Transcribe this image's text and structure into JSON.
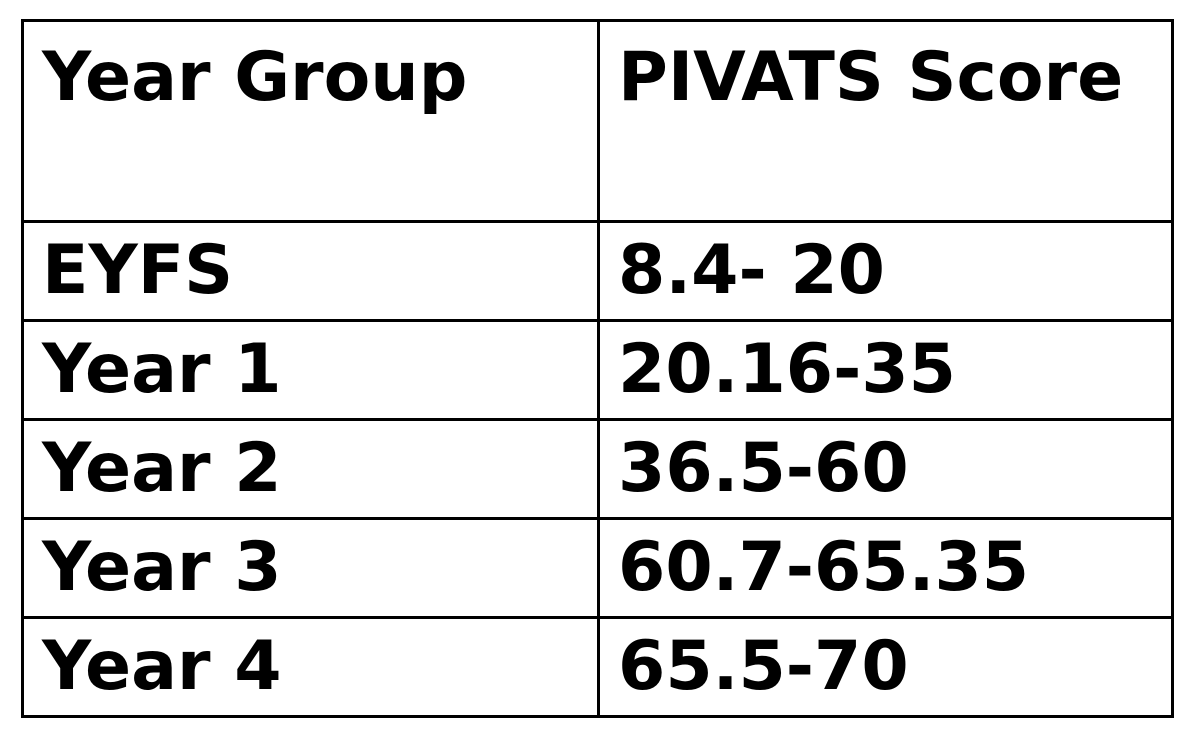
{
  "table": {
    "headers": [
      "Year Group",
      "PIVATS Score"
    ],
    "rows": [
      [
        "EYFS",
        "8.4- 20"
      ],
      [
        "Year 1",
        "20.16-35"
      ],
      [
        "Year 2",
        "36.5-60"
      ],
      [
        "Year 3",
        "60.7-65.35"
      ],
      [
        "Year 4",
        "65.5-70"
      ]
    ]
  }
}
